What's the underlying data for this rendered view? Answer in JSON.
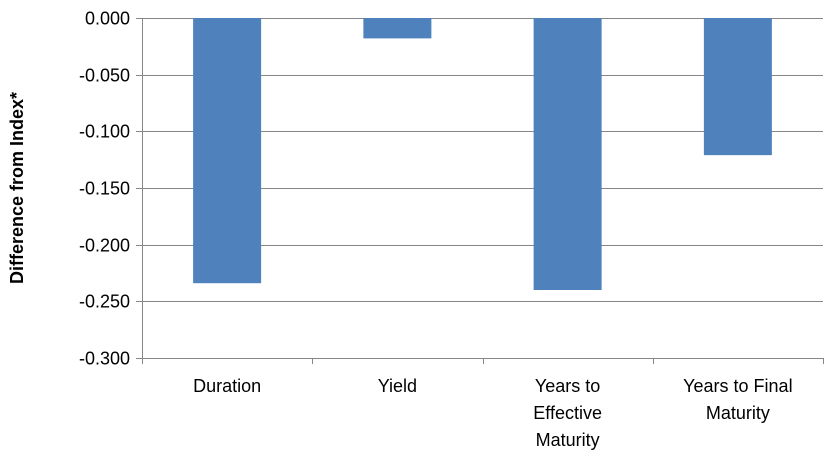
{
  "chart_data": {
    "type": "bar",
    "categories": [
      [
        "Duration"
      ],
      [
        "Yield"
      ],
      [
        "Years to",
        "Effective",
        "Maturity"
      ],
      [
        "Years to Final",
        "Maturity"
      ]
    ],
    "values": [
      -0.234,
      -0.018,
      -0.24,
      -0.121
    ],
    "title": "",
    "xlabel": "",
    "ylabel": "Difference from Index*",
    "ylim": [
      -0.3,
      0.0
    ],
    "yticks": [
      "0.000",
      "-0.050",
      "-0.100",
      "-0.150",
      "-0.200",
      "-0.250",
      "-0.300"
    ],
    "grid": true,
    "legend": "none",
    "colors": {
      "bar": "#4f81bd",
      "grid": "#868686",
      "axis": "#868686"
    }
  }
}
